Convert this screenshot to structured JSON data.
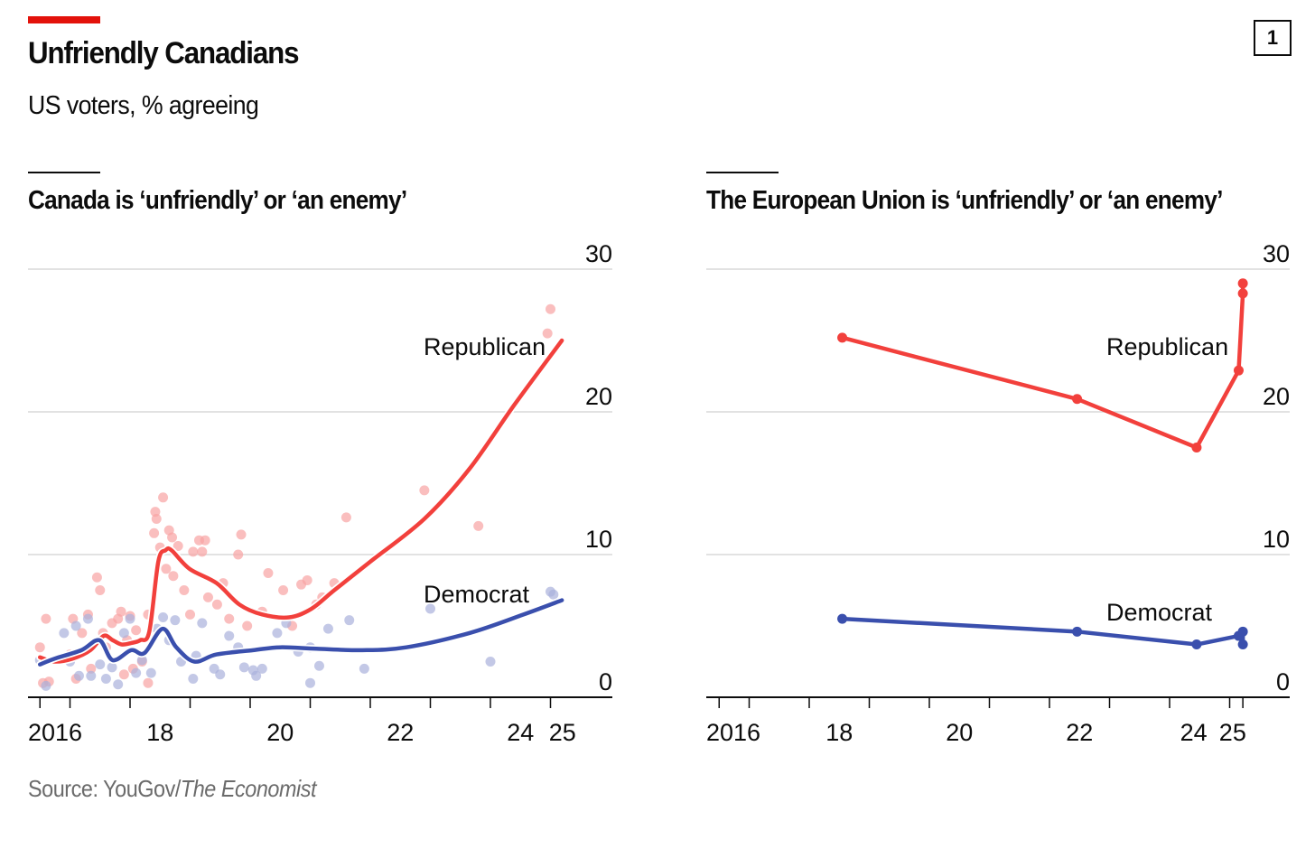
{
  "header": {
    "title": "Unfriendly Canadians",
    "subtitle": "US voters, % agreeing",
    "page_number": "1"
  },
  "footer": {
    "source_prefix": "Source: YouGov/",
    "source_italic": "The Economist"
  },
  "colors": {
    "republican": "#f2403c",
    "democrat": "#3a4fad",
    "republican_dot": "#f8a3a3",
    "democrat_dot": "#a9b0dc",
    "grid": "#d9d9d9",
    "accent": "#e3120b"
  },
  "chart_data": [
    {
      "type": "scatter+line",
      "title": "Canada is ‘unfriendly’ or ‘an enemy’",
      "ylim": [
        0,
        30
      ],
      "yticks": [
        0,
        10,
        20,
        30
      ],
      "xlim": [
        2016.5,
        2026.0
      ],
      "xticks": [
        2016.5,
        2017,
        2018,
        2019,
        2020,
        2021,
        2022,
        2023,
        2024,
        2025
      ],
      "xtick_labels": [
        {
          "label": "2016",
          "year": 2016.75
        },
        {
          "label": "18",
          "year": 2018.5
        },
        {
          "label": "20",
          "year": 2020.5
        },
        {
          "label": "22",
          "year": 2022.5
        },
        {
          "label": "24",
          "year": 2024.5
        },
        {
          "label": "25",
          "year": 2025.2
        }
      ],
      "grid": true,
      "series": [
        {
          "name": "Republican",
          "label": "Republican",
          "trend": [
            [
              2016.5,
              2.8
            ],
            [
              2016.74,
              2.5
            ],
            [
              2017.04,
              2.7
            ],
            [
              2017.34,
              3.3
            ],
            [
              2017.56,
              4.3
            ],
            [
              2017.71,
              4.0
            ],
            [
              2017.86,
              3.7
            ],
            [
              2018.02,
              3.8
            ],
            [
              2018.17,
              4.0
            ],
            [
              2018.32,
              4.6
            ],
            [
              2018.47,
              9.5
            ],
            [
              2018.59,
              10.3
            ],
            [
              2018.69,
              10.3
            ],
            [
              2018.99,
              9.0
            ],
            [
              2019.44,
              8.0
            ],
            [
              2019.82,
              6.5
            ],
            [
              2020.2,
              5.8
            ],
            [
              2020.65,
              5.6
            ],
            [
              2021.02,
              6.2
            ],
            [
              2021.4,
              7.5
            ],
            [
              2022.0,
              9.5
            ],
            [
              2022.9,
              12.5
            ],
            [
              2023.65,
              16.0
            ],
            [
              2024.4,
              20.5
            ],
            [
              2025.19,
              25.0
            ]
          ],
          "points": [
            [
              2016.5,
              3.5
            ],
            [
              2016.55,
              1
            ],
            [
              2016.6,
              5.5
            ],
            [
              2016.65,
              1.1
            ],
            [
              2017.0,
              3
            ],
            [
              2017.05,
              5.5
            ],
            [
              2017.1,
              1.3
            ],
            [
              2017.2,
              4.5
            ],
            [
              2017.3,
              5.8
            ],
            [
              2017.35,
              2
            ],
            [
              2017.45,
              8.4
            ],
            [
              2017.5,
              7.5
            ],
            [
              2017.55,
              4.5
            ],
            [
              2017.6,
              3.5
            ],
            [
              2017.7,
              5.2
            ],
            [
              2017.8,
              5.5
            ],
            [
              2017.85,
              6
            ],
            [
              2017.9,
              1.6
            ],
            [
              2017.95,
              4
            ],
            [
              2018.0,
              5.7
            ],
            [
              2018.05,
              2
            ],
            [
              2018.1,
              4.7
            ],
            [
              2018.2,
              2.5
            ],
            [
              2018.3,
              1
            ],
            [
              2018.3,
              5.8
            ],
            [
              2018.4,
              11.5
            ],
            [
              2018.42,
              13
            ],
            [
              2018.44,
              12.5
            ],
            [
              2018.5,
              10.5
            ],
            [
              2018.55,
              14
            ],
            [
              2018.6,
              9
            ],
            [
              2018.65,
              11.7
            ],
            [
              2018.7,
              11.2
            ],
            [
              2018.72,
              8.5
            ],
            [
              2018.8,
              10.6
            ],
            [
              2018.9,
              7.5
            ],
            [
              2019.0,
              5.8
            ],
            [
              2019.05,
              10.2
            ],
            [
              2019.15,
              11
            ],
            [
              2019.2,
              10.2
            ],
            [
              2019.25,
              11
            ],
            [
              2019.3,
              7
            ],
            [
              2019.45,
              6.5
            ],
            [
              2019.55,
              8
            ],
            [
              2019.65,
              5.5
            ],
            [
              2019.8,
              10
            ],
            [
              2019.85,
              11.4
            ],
            [
              2019.95,
              5
            ],
            [
              2020.2,
              6
            ],
            [
              2020.3,
              8.7
            ],
            [
              2020.55,
              7.5
            ],
            [
              2020.7,
              5
            ],
            [
              2020.85,
              7.9
            ],
            [
              2020.95,
              8.2
            ],
            [
              2021.1,
              6.5
            ],
            [
              2021.2,
              7
            ],
            [
              2021.4,
              8
            ],
            [
              2021.6,
              12.6
            ],
            [
              2022.9,
              14.5
            ],
            [
              2023.8,
              12
            ],
            [
              2024.95,
              25.5
            ],
            [
              2025.0,
              27.2
            ]
          ]
        },
        {
          "name": "Democrat",
          "label": "Democrat",
          "trend": [
            [
              2016.5,
              2.3
            ],
            [
              2016.74,
              2.7
            ],
            [
              2017.19,
              3.3
            ],
            [
              2017.49,
              4.0
            ],
            [
              2017.71,
              2.6
            ],
            [
              2018.02,
              3.3
            ],
            [
              2018.24,
              3.1
            ],
            [
              2018.54,
              4.8
            ],
            [
              2018.77,
              3.5
            ],
            [
              2019.07,
              2.5
            ],
            [
              2019.44,
              3.0
            ],
            [
              2020.05,
              3.3
            ],
            [
              2020.5,
              3.5
            ],
            [
              2021.1,
              3.4
            ],
            [
              2021.85,
              3.3
            ],
            [
              2022.6,
              3.5
            ],
            [
              2023.65,
              4.5
            ],
            [
              2024.55,
              5.8
            ],
            [
              2025.19,
              6.8
            ]
          ],
          "points": [
            [
              2016.5,
              2.6
            ],
            [
              2016.6,
              0.8
            ],
            [
              2016.9,
              4.5
            ],
            [
              2017.0,
              2.5
            ],
            [
              2017.1,
              5
            ],
            [
              2017.15,
              1.5
            ],
            [
              2017.3,
              5.5
            ],
            [
              2017.35,
              1.5
            ],
            [
              2017.5,
              2.3
            ],
            [
              2017.6,
              1.3
            ],
            [
              2017.7,
              2.1
            ],
            [
              2017.8,
              0.9
            ],
            [
              2017.9,
              4.5
            ],
            [
              2018.0,
              5.5
            ],
            [
              2018.1,
              1.7
            ],
            [
              2018.2,
              2.6
            ],
            [
              2018.35,
              1.7
            ],
            [
              2018.45,
              4.8
            ],
            [
              2018.55,
              5.6
            ],
            [
              2018.65,
              4
            ],
            [
              2018.75,
              5.4
            ],
            [
              2018.85,
              2.5
            ],
            [
              2019.05,
              1.3
            ],
            [
              2019.1,
              2.9
            ],
            [
              2019.2,
              5.2
            ],
            [
              2019.4,
              2
            ],
            [
              2019.5,
              1.6
            ],
            [
              2019.65,
              4.3
            ],
            [
              2019.8,
              3.5
            ],
            [
              2019.9,
              2.1
            ],
            [
              2020.05,
              1.9
            ],
            [
              2020.1,
              1.5
            ],
            [
              2020.2,
              2
            ],
            [
              2020.45,
              4.5
            ],
            [
              2020.6,
              5.2
            ],
            [
              2020.8,
              3.2
            ],
            [
              2021.0,
              3.5
            ],
            [
              2021.0,
              1
            ],
            [
              2021.15,
              2.2
            ],
            [
              2021.3,
              4.8
            ],
            [
              2021.65,
              5.4
            ],
            [
              2021.9,
              2
            ],
            [
              2023.0,
              6.2
            ],
            [
              2024.0,
              2.5
            ],
            [
              2025.0,
              7.4
            ],
            [
              2025.05,
              7.2
            ]
          ]
        }
      ]
    },
    {
      "type": "line",
      "title": "The European Union is ‘unfriendly’ or ‘an enemy’",
      "ylim": [
        0,
        30
      ],
      "yticks": [
        0,
        10,
        20,
        30
      ],
      "xlim": [
        2016.5,
        2026.0
      ],
      "xticks": [
        2016.5,
        2017,
        2018,
        2019,
        2020,
        2021,
        2022,
        2023,
        2024,
        2025,
        2025.22
      ],
      "xtick_labels": [
        {
          "label": "2016",
          "year": 2016.75
        },
        {
          "label": "18",
          "year": 2018.5
        },
        {
          "label": "20",
          "year": 2020.5
        },
        {
          "label": "22",
          "year": 2022.5
        },
        {
          "label": "24",
          "year": 2024.4
        },
        {
          "label": "25",
          "year": 2025.05
        }
      ],
      "grid": true,
      "series": [
        {
          "name": "Republican",
          "label": "Republican",
          "values": [
            [
              2018.55,
              25.2
            ],
            [
              2022.46,
              20.9
            ],
            [
              2024.45,
              17.5
            ],
            [
              2025.15,
              22.9
            ],
            [
              2025.22,
              28.3
            ],
            [
              2025.22,
              29.0
            ]
          ]
        },
        {
          "name": "Democrat",
          "label": "Democrat",
          "values": [
            [
              2018.55,
              5.5
            ],
            [
              2022.46,
              4.6
            ],
            [
              2024.45,
              3.7
            ],
            [
              2025.15,
              4.3
            ],
            [
              2025.22,
              4.6
            ],
            [
              2025.22,
              3.7
            ]
          ]
        }
      ]
    }
  ]
}
